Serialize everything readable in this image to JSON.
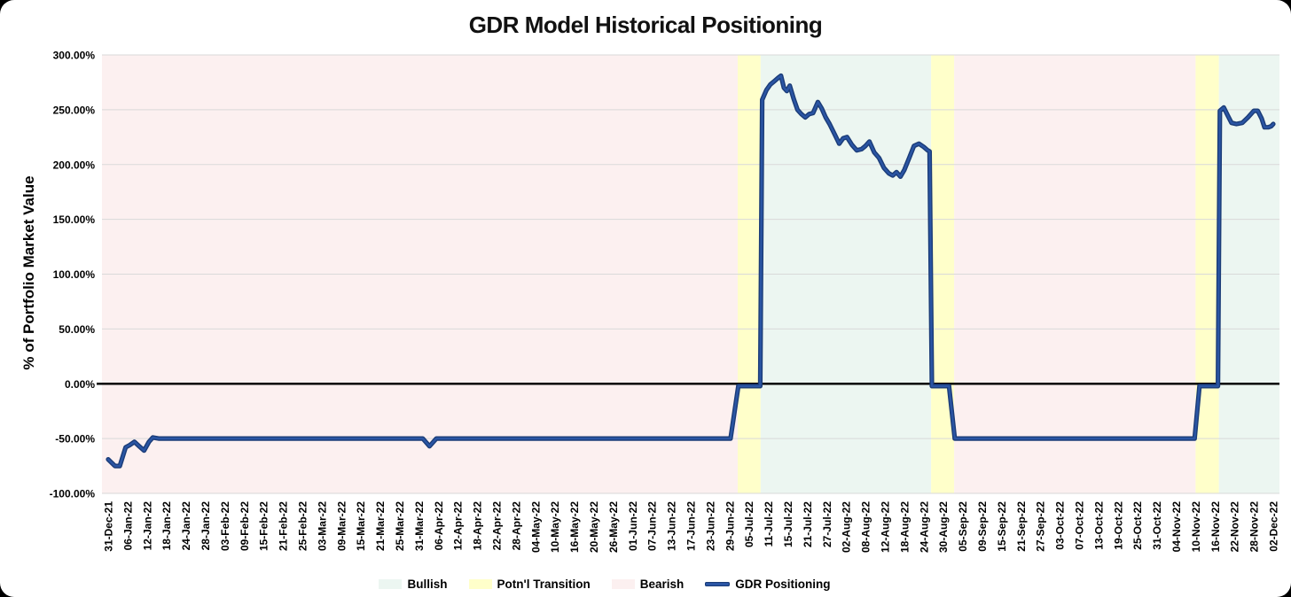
{
  "chart_data": {
    "type": "line",
    "title": "GDR Model Historical Positioning",
    "ylabel": "% of Portfolio Market Value",
    "ylim": [
      -100,
      300
    ],
    "ytick_step": 50,
    "y_tick_labels": [
      "300.00%",
      "250.00%",
      "200.00%",
      "150.00%",
      "100.00%",
      "50.00%",
      "0.00%",
      "-50.00%",
      "-100.00%"
    ],
    "grid_on": true,
    "legend_position": "bottom",
    "x_labels": [
      "31-Dec-21",
      "06-Jan-22",
      "12-Jan-22",
      "18-Jan-22",
      "24-Jan-22",
      "28-Jan-22",
      "03-Feb-22",
      "09-Feb-22",
      "15-Feb-22",
      "21-Feb-22",
      "25-Feb-22",
      "03-Mar-22",
      "09-Mar-22",
      "15-Mar-22",
      "21-Mar-22",
      "25-Mar-22",
      "31-Mar-22",
      "06-Apr-22",
      "12-Apr-22",
      "18-Apr-22",
      "22-Apr-22",
      "28-Apr-22",
      "04-May-22",
      "10-May-22",
      "16-May-22",
      "20-May-22",
      "26-May-22",
      "01-Jun-22",
      "07-Jun-22",
      "13-Jun-22",
      "17-Jun-22",
      "23-Jun-22",
      "29-Jun-22",
      "05-Jul-22",
      "11-Jul-22",
      "15-Jul-22",
      "21-Jul-22",
      "27-Jul-22",
      "02-Aug-22",
      "08-Aug-22",
      "12-Aug-22",
      "18-Aug-22",
      "24-Aug-22",
      "30-Aug-22",
      "05-Sep-22",
      "09-Sep-22",
      "15-Sep-22",
      "21-Sep-22",
      "27-Sep-22",
      "03-Oct-22",
      "07-Oct-22",
      "13-Oct-22",
      "19-Oct-22",
      "25-Oct-22",
      "31-Oct-22",
      "04-Nov-22",
      "10-Nov-22",
      "16-Nov-22",
      "22-Nov-22",
      "28-Nov-22",
      "02-Dec-22"
    ],
    "regions": [
      {
        "label": "Bearish",
        "from": 0,
        "to": 32.42,
        "color": "#fcf0f0"
      },
      {
        "label": "Potn'l Transition",
        "from": 32.42,
        "to": 33.6,
        "color": "#ffffca"
      },
      {
        "label": "Bullish",
        "from": 33.6,
        "to": 42.38,
        "color": "#ecf6f1"
      },
      {
        "label": "Potn'l Transition",
        "from": 42.38,
        "to": 43.57,
        "color": "#ffffca"
      },
      {
        "label": "Bearish",
        "from": 43.57,
        "to": 56.0,
        "color": "#fcf0f0"
      },
      {
        "label": "Potn'l Transition",
        "from": 56.0,
        "to": 57.2,
        "color": "#ffffca"
      },
      {
        "label": "Bullish",
        "from": 57.2,
        "to": 60,
        "color": "#ecf6f1"
      }
    ],
    "series": [
      {
        "name": "GDR Positioning",
        "color": "#2a55a4",
        "edge_color": "#1b3c77",
        "points": [
          [
            0,
            -69
          ],
          [
            0.35,
            -75
          ],
          [
            0.6,
            -75
          ],
          [
            0.9,
            -58
          ],
          [
            1.1,
            -56
          ],
          [
            1.35,
            -53
          ],
          [
            1.6,
            -57
          ],
          [
            1.85,
            -61
          ],
          [
            2.1,
            -53
          ],
          [
            2.3,
            -49
          ],
          [
            2.6,
            -50
          ],
          [
            16.2,
            -50
          ],
          [
            16.55,
            -57
          ],
          [
            16.9,
            -50
          ],
          [
            32.05,
            -50
          ],
          [
            32.45,
            0
          ],
          [
            33.58,
            0
          ],
          [
            33.68,
            259
          ],
          [
            33.9,
            268
          ],
          [
            34.1,
            273
          ],
          [
            34.3,
            276
          ],
          [
            34.5,
            279
          ],
          [
            34.65,
            281
          ],
          [
            34.8,
            270
          ],
          [
            34.95,
            267
          ],
          [
            35.1,
            272
          ],
          [
            35.3,
            260
          ],
          [
            35.5,
            250
          ],
          [
            35.7,
            246
          ],
          [
            35.9,
            243
          ],
          [
            36.1,
            246
          ],
          [
            36.3,
            247
          ],
          [
            36.55,
            257
          ],
          [
            36.75,
            251
          ],
          [
            36.95,
            243
          ],
          [
            37.15,
            237
          ],
          [
            37.4,
            228
          ],
          [
            37.65,
            219
          ],
          [
            37.85,
            224
          ],
          [
            38.05,
            225
          ],
          [
            38.3,
            218
          ],
          [
            38.55,
            213
          ],
          [
            38.8,
            214
          ],
          [
            39.0,
            217
          ],
          [
            39.2,
            221
          ],
          [
            39.45,
            211
          ],
          [
            39.7,
            206
          ],
          [
            39.95,
            197
          ],
          [
            40.2,
            192
          ],
          [
            40.4,
            190
          ],
          [
            40.6,
            193
          ],
          [
            40.8,
            189
          ],
          [
            41.0,
            195
          ],
          [
            41.25,
            206
          ],
          [
            41.5,
            217
          ],
          [
            41.75,
            219
          ],
          [
            42.0,
            216
          ],
          [
            42.2,
            213
          ],
          [
            42.3,
            212
          ],
          [
            42.42,
            0
          ],
          [
            43.3,
            0
          ],
          [
            43.6,
            -50
          ],
          [
            55.95,
            -50
          ],
          [
            56.2,
            0
          ],
          [
            57.15,
            0
          ],
          [
            57.25,
            249
          ],
          [
            57.45,
            252
          ],
          [
            57.65,
            245
          ],
          [
            57.85,
            238
          ],
          [
            58.1,
            237
          ],
          [
            58.4,
            238
          ],
          [
            58.7,
            243
          ],
          [
            59.0,
            249
          ],
          [
            59.2,
            249
          ],
          [
            59.4,
            242
          ],
          [
            59.55,
            234
          ],
          [
            59.75,
            234
          ],
          [
            59.9,
            235
          ],
          [
            60,
            237
          ]
        ]
      }
    ],
    "legend": [
      {
        "label": "Bullish",
        "swatch": "#ecf6f1",
        "type": "box"
      },
      {
        "label": "Potn'l Transition",
        "swatch": "#ffffca",
        "type": "box"
      },
      {
        "label": "Bearish",
        "swatch": "#fcf0f0",
        "type": "box"
      },
      {
        "label": "GDR Positioning",
        "swatch": "#2a55a4",
        "type": "line"
      }
    ],
    "colors": {
      "grid": "#d9d9d9",
      "zero_line": "#000000",
      "text": "#000000"
    }
  }
}
